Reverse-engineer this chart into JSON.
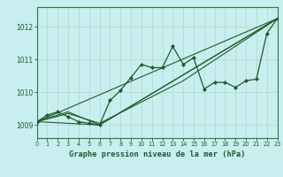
{
  "title": "Graphe pression niveau de la mer (hPa)",
  "bg_color": "#c8eef0",
  "plot_bg_color": "#c8eef0",
  "grid_color": "#b0d8cc",
  "line_color": "#1a5c28",
  "xlim": [
    0,
    23
  ],
  "ylim": [
    1008.6,
    1012.6
  ],
  "yticks": [
    1009,
    1010,
    1011,
    1012
  ],
  "xticks": [
    0,
    1,
    2,
    3,
    4,
    5,
    6,
    7,
    8,
    9,
    10,
    11,
    12,
    13,
    14,
    15,
    16,
    17,
    18,
    19,
    20,
    21,
    22,
    23
  ],
  "main_x": [
    0,
    1,
    2,
    3,
    4,
    5,
    6,
    7,
    8,
    9,
    10,
    11,
    12,
    13,
    14,
    15,
    16,
    17,
    18,
    19,
    20,
    21,
    22,
    23
  ],
  "main_y": [
    1009.1,
    1009.3,
    1009.4,
    1009.25,
    1009.1,
    1009.05,
    1009.0,
    1009.75,
    1010.05,
    1010.45,
    1010.85,
    1010.75,
    1010.75,
    1011.4,
    1010.85,
    1011.05,
    1010.1,
    1010.3,
    1010.3,
    1010.15,
    1010.35,
    1010.4,
    1011.8,
    1012.25
  ],
  "line2_x": [
    0,
    23
  ],
  "line2_y": [
    1009.1,
    1012.25
  ],
  "line3_x": [
    0,
    6,
    23
  ],
  "line3_y": [
    1009.1,
    1009.0,
    1012.25
  ],
  "line4_x": [
    0,
    3,
    6,
    23
  ],
  "line4_y": [
    1009.1,
    1009.4,
    1009.0,
    1012.25
  ],
  "line5_x": [
    0,
    3,
    6,
    14,
    23
  ],
  "line5_y": [
    1009.1,
    1009.35,
    1009.05,
    1010.35,
    1012.25
  ],
  "border_color": "#2d7a3a"
}
